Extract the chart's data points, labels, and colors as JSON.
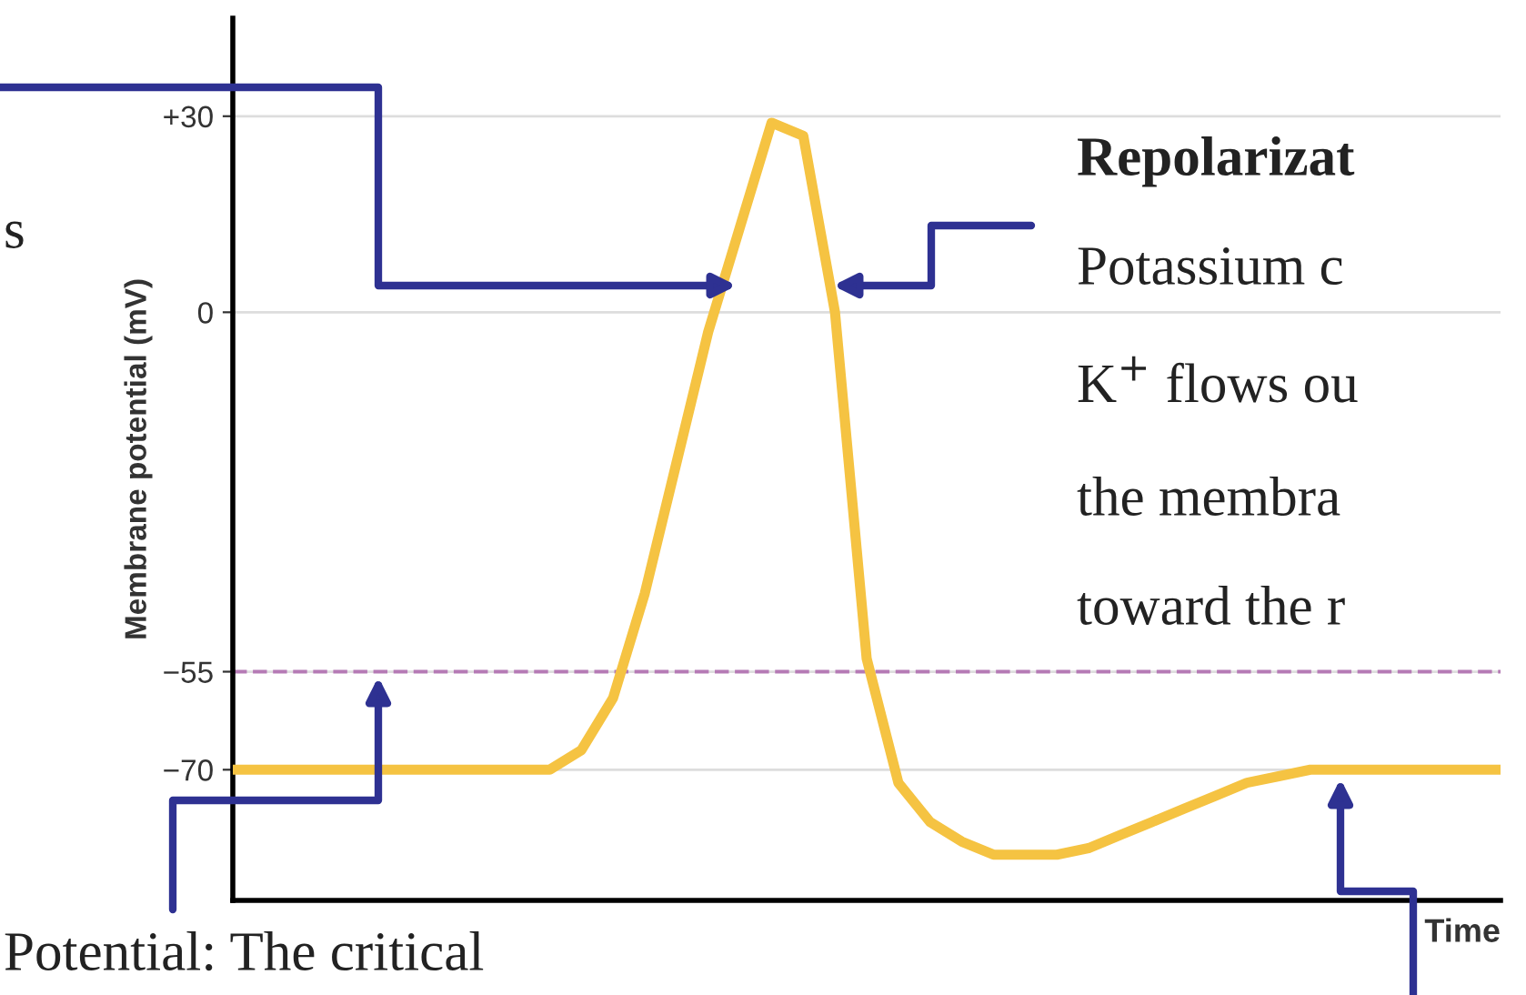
{
  "chart_data": {
    "type": "line",
    "ylabel": "Membrane potential (mV)",
    "xlabel": "Time",
    "categories": [
      null,
      null,
      null,
      null,
      null,
      null,
      null,
      null,
      null,
      null,
      null,
      null,
      null,
      null,
      null,
      null,
      null,
      null,
      null,
      null,
      null,
      null,
      null,
      null,
      null,
      null,
      null,
      null,
      null,
      null,
      null,
      null,
      null,
      null,
      null,
      null,
      null,
      null,
      null,
      null,
      null
    ],
    "series": [
      {
        "color": "#f5c342",
        "values": [
          -70,
          -70,
          -70,
          -70,
          -70,
          -70,
          -70,
          -70,
          -70,
          -70,
          -70,
          -67,
          -59,
          -43,
          -23,
          -3,
          13,
          29,
          27,
          0,
          -53,
          -72,
          -78,
          -81,
          -83,
          -83,
          -83,
          -82,
          -80,
          -78,
          -76,
          -74,
          -72,
          -71,
          -70,
          -70,
          -70,
          -70,
          -70,
          -70,
          -70
        ]
      }
    ],
    "ylim": [
      -90,
      45
    ],
    "yticks": [
      {
        "value": -70,
        "label": "−70"
      },
      {
        "value": -55,
        "label": "−55"
      },
      0,
      {
        "value": 30,
        "label": "+30"
      }
    ],
    "grid": "y",
    "marker": "none",
    "line_style": "solid",
    "legend": false,
    "ref_lines": [
      {
        "axis": "y",
        "value": -55,
        "label": null,
        "color": "#b57ab5",
        "line_style": "dashed"
      }
    ],
    "annotations": [
      "s",
      "Repolarizat",
      "Potassium c",
      "K$^{+}$ flows ou",
      "the membra",
      "toward the r",
      "Potential: The critical"
    ]
  }
}
